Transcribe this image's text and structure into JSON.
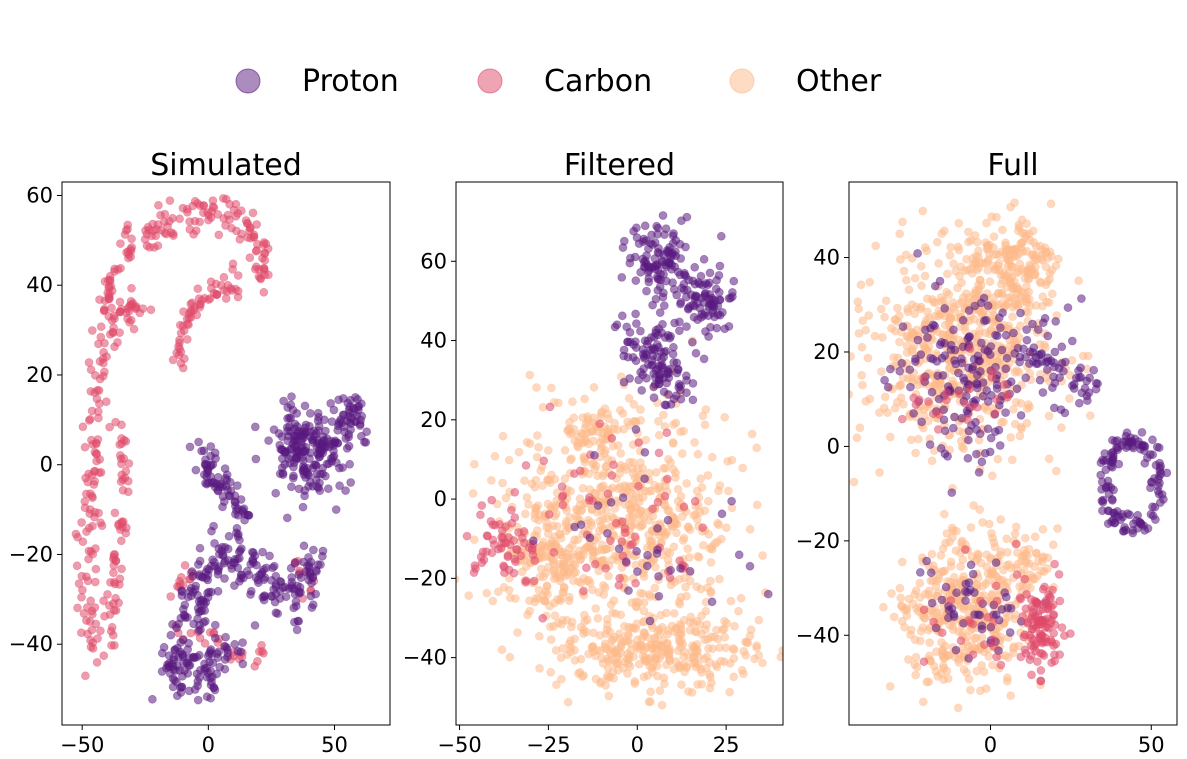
{
  "colors": {
    "Proton": "#5a1a80",
    "Carbon": "#e04a6a",
    "Other": "#fdb98a"
  },
  "legend": {
    "placement": "top-center",
    "items": [
      {
        "name": "Proton",
        "color": "#5a1a80"
      },
      {
        "name": "Carbon",
        "color": "#e04a6a"
      },
      {
        "name": "Other",
        "color": "#fdb98a"
      }
    ]
  },
  "chart_data": [
    {
      "type": "scatter",
      "title": "Simulated",
      "xlim": [
        -58,
        72
      ],
      "ylim": [
        -58,
        63
      ],
      "xticks": [
        -50,
        0,
        50
      ],
      "yticks": [
        -40,
        -20,
        0,
        20,
        40,
        60
      ],
      "grid": false,
      "clusters": [
        {
          "class": "Carbon",
          "shape": "path",
          "pts": [
            [
              -46,
              -42
            ],
            [
              -48,
              -28
            ],
            [
              -48,
              -12
            ],
            [
              -45,
              0
            ],
            [
              -44,
              15
            ],
            [
              -42,
              28
            ],
            [
              -38,
              40
            ],
            [
              -30,
              48
            ],
            [
              -20,
              53
            ],
            [
              -8,
              56
            ],
            [
              3,
              56
            ],
            [
              13,
              54
            ],
            [
              20,
              50
            ],
            [
              23,
              44
            ],
            [
              21,
              39
            ]
          ],
          "n": 260,
          "spread": 2.2
        },
        {
          "class": "Carbon",
          "shape": "path",
          "pts": [
            [
              -12,
              22
            ],
            [
              -10,
              30
            ],
            [
              -5,
              36
            ],
            [
              2,
              39
            ],
            [
              8,
              40
            ],
            [
              12,
              40
            ]
          ],
          "n": 60,
          "spread": 1.6
        },
        {
          "class": "Carbon",
          "shape": "path",
          "pts": [
            [
              -38,
              -40
            ],
            [
              -38,
              -32
            ],
            [
              -36,
              -14
            ],
            [
              -34,
              -12
            ]
          ],
          "n": 40,
          "spread": 1.5
        },
        {
          "class": "Carbon",
          "shape": "path",
          "pts": [
            [
              -38,
              28
            ],
            [
              -35,
              32
            ],
            [
              -30,
              35
            ],
            [
              -26,
              34
            ]
          ],
          "n": 30,
          "spread": 1.8
        },
        {
          "class": "Carbon",
          "shape": "path",
          "pts": [
            [
              -34,
              -6
            ],
            [
              -33,
              4
            ],
            [
              -36,
              10
            ]
          ],
          "n": 20,
          "spread": 1.5
        },
        {
          "class": "Carbon",
          "shape": "path",
          "pts": [
            [
              -10,
              -38
            ],
            [
              5,
              -40
            ],
            [
              12,
              -44
            ],
            [
              22,
              -42
            ]
          ],
          "n": 25,
          "spread": 1.8
        },
        {
          "class": "Carbon",
          "shape": "path",
          "pts": [
            [
              -16,
              -28
            ],
            [
              -10,
              -26
            ],
            [
              -8,
              -24
            ]
          ],
          "n": 12,
          "spread": 1.5
        },
        {
          "class": "Carbon",
          "shape": "path",
          "pts": [
            [
              35,
              -22
            ],
            [
              40,
              -28
            ],
            [
              42,
              -30
            ]
          ],
          "n": 10,
          "spread": 1.5
        },
        {
          "class": "Proton",
          "shape": "blob",
          "cx": 40,
          "cy": 3,
          "rx": 14,
          "ry": 8,
          "n": 200
        },
        {
          "class": "Proton",
          "shape": "blob",
          "cx": 57,
          "cy": 10,
          "rx": 8,
          "ry": 5,
          "n": 45
        },
        {
          "class": "Proton",
          "shape": "path",
          "pts": [
            [
              -3,
              4
            ],
            [
              0,
              -2
            ],
            [
              5,
              -4
            ],
            [
              10,
              -6
            ],
            [
              13,
              -12
            ]
          ],
          "n": 70,
          "spread": 2.2
        },
        {
          "class": "Proton",
          "shape": "path",
          "pts": [
            [
              -12,
              -50
            ],
            [
              -14,
              -44
            ],
            [
              -8,
              -36
            ],
            [
              -4,
              -28
            ],
            [
              2,
              -22
            ],
            [
              10,
              -20
            ],
            [
              18,
              -24
            ],
            [
              25,
              -28
            ],
            [
              32,
              -30
            ],
            [
              40,
              -24
            ],
            [
              45,
              -22
            ]
          ],
          "n": 240,
          "spread": 3.2
        },
        {
          "class": "Proton",
          "shape": "blob",
          "cx": 0,
          "cy": -44,
          "rx": 12,
          "ry": 6,
          "n": 70
        }
      ]
    },
    {
      "type": "scatter",
      "title": "Filtered",
      "xlim": [
        -51,
        41
      ],
      "ylim": [
        -57,
        80
      ],
      "xticks": [
        -50,
        -25,
        0,
        25
      ],
      "yticks": [
        -40,
        -20,
        0,
        20,
        40,
        60
      ],
      "grid": false,
      "clusters": [
        {
          "class": "Other",
          "shape": "blob",
          "cx": -5,
          "cy": -5,
          "rx": 28,
          "ry": 24,
          "n": 600
        },
        {
          "class": "Other",
          "shape": "blob",
          "cx": 5,
          "cy": -38,
          "rx": 28,
          "ry": 9,
          "n": 320
        },
        {
          "class": "Other",
          "shape": "blob",
          "cx": -25,
          "cy": -15,
          "rx": 12,
          "ry": 10,
          "n": 120
        },
        {
          "class": "Other",
          "shape": "blob",
          "cx": -12,
          "cy": 18,
          "rx": 10,
          "ry": 6,
          "n": 60
        },
        {
          "class": "Carbon",
          "shape": "blob",
          "cx": -38,
          "cy": -13,
          "rx": 9,
          "ry": 10,
          "n": 60
        },
        {
          "class": "Carbon",
          "shape": "blob",
          "cx": -5,
          "cy": -8,
          "rx": 24,
          "ry": 24,
          "n": 60
        },
        {
          "class": "Proton",
          "shape": "blob",
          "cx": 7,
          "cy": 60,
          "rx": 8,
          "ry": 9,
          "n": 110
        },
        {
          "class": "Proton",
          "shape": "blob",
          "cx": 20,
          "cy": 50,
          "rx": 7,
          "ry": 8,
          "n": 80
        },
        {
          "class": "Proton",
          "shape": "blob",
          "cx": 5,
          "cy": 37,
          "rx": 9,
          "ry": 8,
          "n": 90
        },
        {
          "class": "Proton",
          "shape": "blob",
          "cx": 10,
          "cy": 28,
          "rx": 6,
          "ry": 5,
          "n": 30
        },
        {
          "class": "Proton",
          "shape": "blob",
          "cx": 0,
          "cy": -10,
          "rx": 25,
          "ry": 22,
          "n": 35
        }
      ]
    },
    {
      "type": "scatter",
      "title": "Full",
      "xlim": [
        -44,
        58
      ],
      "ylim": [
        -59,
        56
      ],
      "xticks": [
        0,
        50
      ],
      "yticks": [
        -40,
        -20,
        0,
        20,
        40
      ],
      "grid": false,
      "clusters": [
        {
          "class": "Other",
          "shape": "blob",
          "cx": -10,
          "cy": 20,
          "rx": 26,
          "ry": 18,
          "n": 560
        },
        {
          "class": "Other",
          "shape": "blob",
          "cx": 5,
          "cy": 38,
          "rx": 13,
          "ry": 10,
          "n": 200
        },
        {
          "class": "Other",
          "shape": "blob",
          "cx": -8,
          "cy": -35,
          "rx": 18,
          "ry": 14,
          "n": 380
        },
        {
          "class": "Other",
          "shape": "blob",
          "cx": 10,
          "cy": -24,
          "rx": 8,
          "ry": 6,
          "n": 60
        },
        {
          "class": "Proton",
          "shape": "blob",
          "cx": -5,
          "cy": 15,
          "rx": 24,
          "ry": 15,
          "n": 180
        },
        {
          "class": "Proton",
          "shape": "path",
          "pts": [
            [
              12,
              22
            ],
            [
              20,
              18
            ],
            [
              25,
              15
            ],
            [
              30,
              12
            ],
            [
              35,
              11
            ]
          ],
          "n": 50,
          "spread": 2.0
        },
        {
          "class": "Proton",
          "shape": "ring",
          "cx": 44,
          "cy": -8,
          "rx": 9,
          "ry": 10,
          "n": 130
        },
        {
          "class": "Proton",
          "shape": "blob",
          "cx": -5,
          "cy": -35,
          "rx": 16,
          "ry": 13,
          "n": 50
        },
        {
          "class": "Carbon",
          "shape": "blob",
          "cx": 16,
          "cy": -38,
          "rx": 7,
          "ry": 8,
          "n": 110
        },
        {
          "class": "Carbon",
          "shape": "blob",
          "cx": -10,
          "cy": 10,
          "rx": 15,
          "ry": 8,
          "n": 25
        },
        {
          "class": "Carbon",
          "shape": "blob",
          "cx": -5,
          "cy": -38,
          "rx": 15,
          "ry": 12,
          "n": 25
        }
      ]
    }
  ]
}
